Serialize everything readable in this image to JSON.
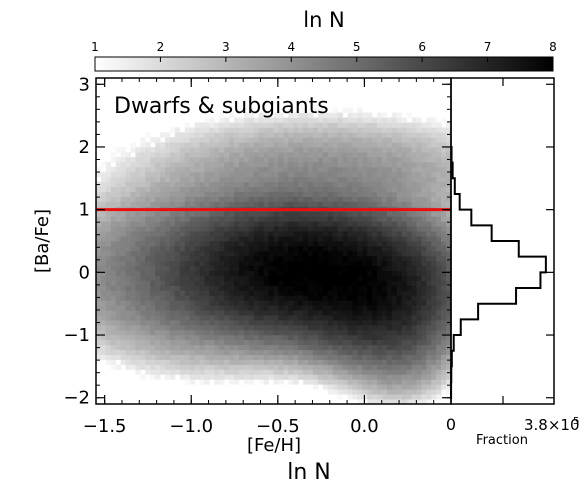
{
  "chart_data": [
    {
      "type": "heatmap",
      "panel_text": "Dwarfs & subgiants",
      "xlabel": "[Fe/H]",
      "ylabel": "[Ba/Fe]",
      "xlim": [
        -1.55,
        0.5
      ],
      "ylim": [
        -2.1,
        3.1
      ],
      "xticks": [
        -1.5,
        -1.0,
        -0.5,
        0.0
      ],
      "xtick_labels": [
        "−1.5",
        "−1.0",
        "−0.5",
        "0.0"
      ],
      "yticks": [
        -2,
        -1,
        0,
        1,
        2,
        3
      ],
      "ytick_labels": [
        "−2",
        "−1",
        "0",
        "1",
        "2",
        "3"
      ],
      "colorbar": {
        "label": "ln N",
        "range": [
          1,
          8
        ],
        "ticks": [
          1,
          2,
          3,
          4,
          5,
          6,
          7,
          8
        ],
        "tick_labels": [
          "1",
          "2",
          "3",
          "4",
          "5",
          "6",
          "7",
          "8"
        ],
        "colormap": "white-to-black"
      },
      "density_components": [
        {
          "fe_h": -0.35,
          "ba_fe": 0.05,
          "sigma_fe_h": 0.32,
          "sigma_ba_fe": 0.45,
          "ln_n": 8.0
        },
        {
          "fe_h": 0.05,
          "ba_fe": -0.35,
          "sigma_fe_h": 0.22,
          "sigma_ba_fe": 0.45,
          "ln_n": 7.4
        },
        {
          "fe_h": -0.85,
          "ba_fe": 0.0,
          "sigma_fe_h": 0.4,
          "sigma_ba_fe": 0.6,
          "ln_n": 5.5
        },
        {
          "fe_h": -0.25,
          "ba_fe": 1.5,
          "sigma_fe_h": 0.5,
          "sigma_ba_fe": 0.45,
          "ln_n": 4.2
        },
        {
          "fe_h": 0.2,
          "ba_fe": -1.1,
          "sigma_fe_h": 0.15,
          "sigma_ba_fe": 0.4,
          "ln_n": 4.8
        }
      ],
      "reference_line": {
        "ba_fe": 1.0,
        "color": "#e8100f"
      }
    },
    {
      "type": "line",
      "subtype": "step-histogram",
      "xlabel": "Fraction",
      "xlim": [
        0,
        380000
      ],
      "xtick_labels": [
        "0",
        "3.8×10",
        "5"
      ],
      "bin_edges": [
        -2.0,
        -1.75,
        -1.5,
        -1.25,
        -1.0,
        -0.75,
        -0.5,
        -0.25,
        0.0,
        0.25,
        0.5,
        0.75,
        1.0,
        1.25,
        1.5,
        1.75,
        2.0
      ],
      "values": [
        300,
        1000,
        3000,
        10000,
        36000,
        100000,
        240000,
        330000,
        350000,
        250000,
        150000,
        75000,
        32000,
        14000,
        6000,
        2000
      ]
    }
  ],
  "footer_label": "ln N"
}
